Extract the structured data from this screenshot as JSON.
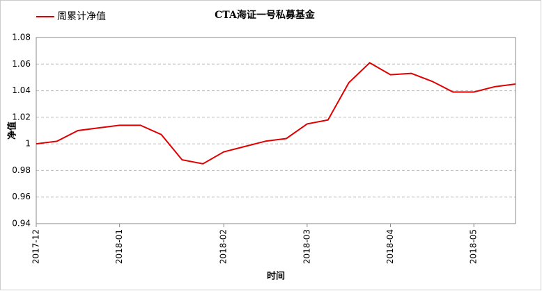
{
  "chart_data": {
    "type": "line",
    "title": "CTA海证一号私募基金",
    "x_label": "时间",
    "y_label": "净值",
    "categories": [
      "2017-12",
      null,
      null,
      null,
      "2018-01",
      null,
      null,
      null,
      null,
      "2018-02",
      null,
      null,
      null,
      "2018-03",
      null,
      null,
      null,
      "2018-04",
      null,
      null,
      null,
      "2018-05",
      null,
      null
    ],
    "series": [
      {
        "name": "周累计净值",
        "color": "#e00000",
        "values": [
          1.0,
          1.002,
          1.01,
          1.012,
          1.014,
          1.014,
          1.007,
          0.988,
          0.985,
          0.994,
          0.998,
          1.002,
          1.004,
          1.015,
          1.018,
          1.046,
          1.061,
          1.052,
          1.053,
          1.047,
          1.039,
          1.039,
          1.043,
          1.045
        ]
      }
    ],
    "ylim": [
      0.94,
      1.08
    ],
    "yticks": [
      0.94,
      0.96,
      0.98,
      1,
      1.02,
      1.04,
      1.06,
      1.08
    ],
    "grid": true,
    "legend": "top-left"
  }
}
